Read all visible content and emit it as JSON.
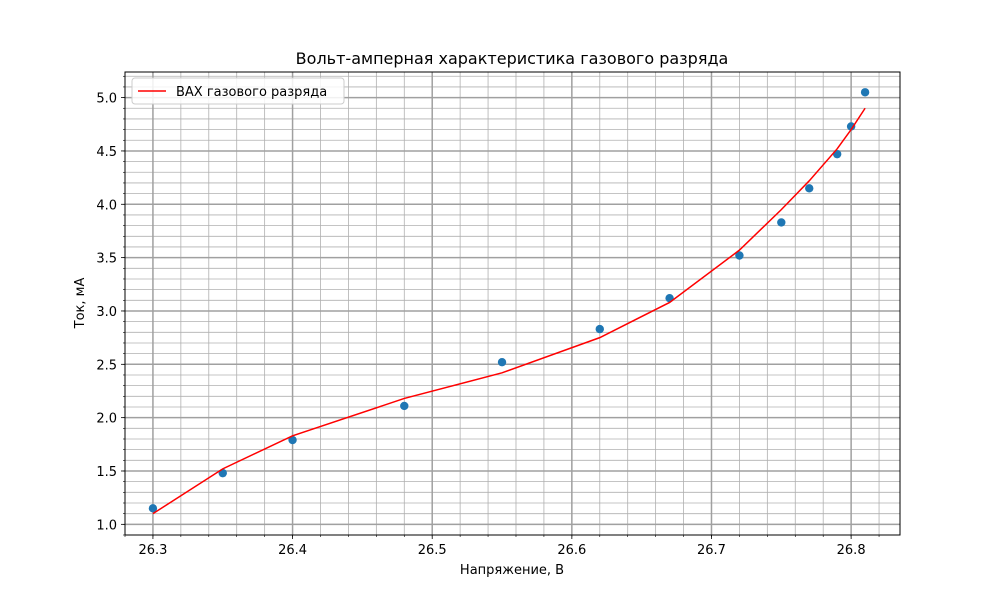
{
  "chart_data": {
    "type": "scatter",
    "title": "Вольт-амперная характеристика газового разряда",
    "xlabel": "Напряжение, В",
    "ylabel": "Ток, мА",
    "xlim": [
      26.28,
      26.835
    ],
    "ylim": [
      0.9,
      5.24
    ],
    "x_major_ticks": [
      26.3,
      26.4,
      26.5,
      26.6,
      26.7,
      26.8
    ],
    "x_minor_step": 0.02,
    "y_major_ticks": [
      1.0,
      1.5,
      2.0,
      2.5,
      3.0,
      3.5,
      4.0,
      4.5,
      5.0
    ],
    "y_minor_step": 0.1,
    "grid": "major-and-minor",
    "legend": {
      "placement": "upper-left",
      "entries": [
        "ВАХ газового разряда"
      ]
    },
    "measurements": {
      "color": "#1f77b4",
      "x": [
        26.3,
        26.35,
        26.4,
        26.48,
        26.55,
        26.62,
        26.67,
        26.72,
        26.75,
        26.77,
        26.79,
        26.8,
        26.81
      ],
      "y": [
        1.15,
        1.48,
        1.79,
        2.11,
        2.52,
        2.83,
        3.12,
        3.52,
        3.83,
        4.15,
        4.47,
        4.73,
        5.05
      ]
    },
    "series": [
      {
        "name": "ВАХ газового разряда",
        "color": "#ff0000",
        "x": [
          26.3,
          26.35,
          26.4,
          26.48,
          26.55,
          26.62,
          26.67,
          26.72,
          26.75,
          26.77,
          26.79,
          26.8,
          26.81
        ],
        "y": [
          1.1,
          1.52,
          1.83,
          2.18,
          2.42,
          2.75,
          3.08,
          3.57,
          3.95,
          4.22,
          4.52,
          4.7,
          4.9
        ]
      }
    ]
  }
}
